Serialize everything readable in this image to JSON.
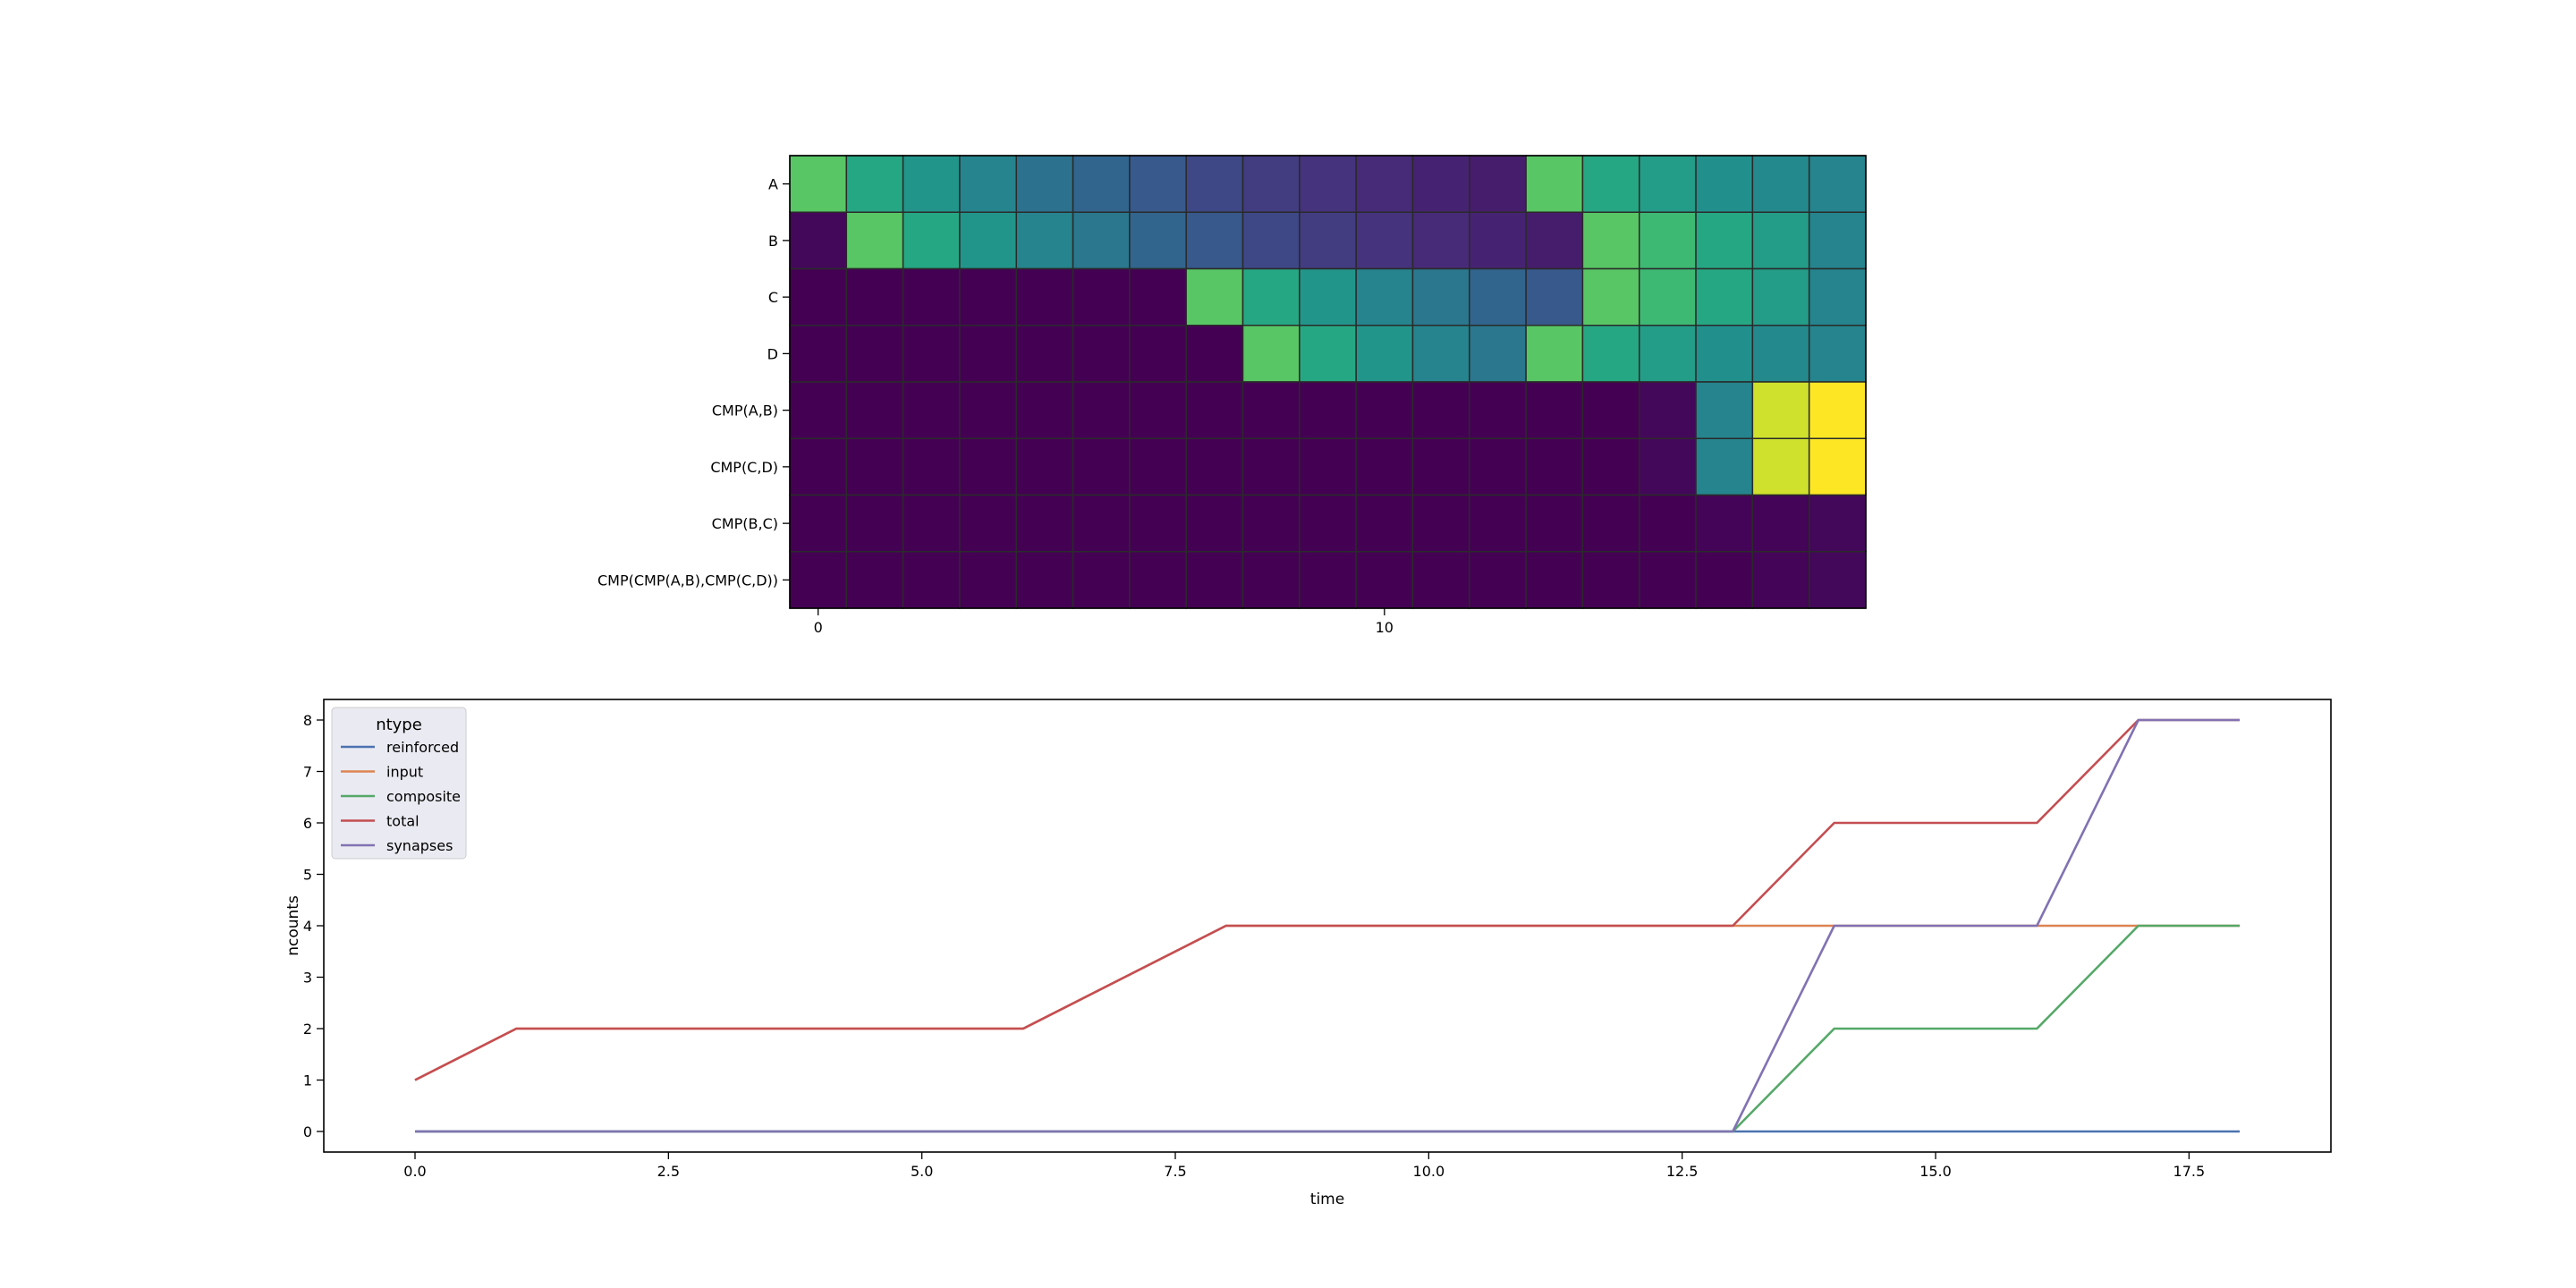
{
  "chart_data": [
    {
      "type": "heatmap",
      "rows": [
        "A",
        "B",
        "C",
        "D",
        "CMP(A,B)",
        "CMP(C,D)",
        "CMP(B,C)",
        "CMP(CMP(A,B),CMP(C,D))"
      ],
      "columns": [
        0,
        1,
        2,
        3,
        4,
        5,
        6,
        7,
        8,
        9,
        10,
        11,
        12,
        13,
        14,
        15,
        16,
        17,
        18
      ],
      "xticks": [
        0,
        10
      ],
      "colormap": "viridis",
      "values": [
        [
          0.74,
          0.6,
          0.52,
          0.45,
          0.38,
          0.33,
          0.28,
          0.22,
          0.18,
          0.15,
          0.12,
          0.1,
          0.08,
          0.74,
          0.6,
          0.55,
          0.5,
          0.47,
          0.45
        ],
        [
          0.02,
          0.74,
          0.6,
          0.52,
          0.45,
          0.4,
          0.33,
          0.28,
          0.22,
          0.18,
          0.15,
          0.12,
          0.1,
          0.08,
          0.74,
          0.68,
          0.6,
          0.55,
          0.45
        ],
        [
          0.0,
          0.0,
          0.0,
          0.0,
          0.0,
          0.0,
          0.0,
          0.74,
          0.6,
          0.52,
          0.45,
          0.4,
          0.33,
          0.28,
          0.74,
          0.68,
          0.6,
          0.55,
          0.45
        ],
        [
          0.0,
          0.0,
          0.0,
          0.0,
          0.0,
          0.0,
          0.0,
          0.0,
          0.74,
          0.6,
          0.52,
          0.45,
          0.4,
          0.74,
          0.6,
          0.55,
          0.5,
          0.47,
          0.45
        ],
        [
          0.0,
          0.0,
          0.0,
          0.0,
          0.0,
          0.0,
          0.0,
          0.0,
          0.0,
          0.0,
          0.0,
          0.0,
          0.0,
          0.0,
          0.0,
          0.02,
          0.45,
          0.93,
          1.0
        ],
        [
          0.0,
          0.0,
          0.0,
          0.0,
          0.0,
          0.0,
          0.0,
          0.0,
          0.0,
          0.0,
          0.0,
          0.0,
          0.0,
          0.0,
          0.0,
          0.02,
          0.45,
          0.93,
          1.0
        ],
        [
          0.0,
          0.0,
          0.0,
          0.0,
          0.0,
          0.0,
          0.0,
          0.0,
          0.0,
          0.0,
          0.0,
          0.0,
          0.0,
          0.0,
          0.0,
          0.0,
          0.01,
          0.01,
          0.02
        ],
        [
          0.0,
          0.0,
          0.0,
          0.0,
          0.0,
          0.0,
          0.0,
          0.0,
          0.0,
          0.0,
          0.0,
          0.0,
          0.0,
          0.0,
          0.0,
          0.0,
          0.0,
          0.01,
          0.02
        ]
      ]
    },
    {
      "type": "line",
      "xlabel": "time",
      "ylabel": "ncounts",
      "xlim": [
        -0.9,
        18.9
      ],
      "ylim": [
        -0.4,
        8.4
      ],
      "xticks": [
        0.0,
        2.5,
        5.0,
        7.5,
        10.0,
        12.5,
        15.0,
        17.5
      ],
      "xtick_labels": [
        "0.0",
        "2.5",
        "5.0",
        "7.5",
        "10.0",
        "12.5",
        "15.0",
        "17.5"
      ],
      "yticks": [
        0,
        1,
        2,
        3,
        4,
        5,
        6,
        7,
        8
      ],
      "yticks_labels": [
        "0",
        "1",
        "2",
        "3",
        "4",
        "5",
        "6",
        "7",
        "8"
      ],
      "legend_title": "ntype",
      "legend_position": "upper-left",
      "x": [
        0,
        1,
        2,
        3,
        4,
        5,
        6,
        7,
        8,
        9,
        10,
        11,
        12,
        13,
        14,
        15,
        16,
        17,
        18
      ],
      "series": [
        {
          "name": "reinforced",
          "color": "#4c72b0",
          "values": [
            0,
            0,
            0,
            0,
            0,
            0,
            0,
            0,
            0,
            0,
            0,
            0,
            0,
            0,
            0,
            0,
            0,
            0,
            0
          ]
        },
        {
          "name": "input",
          "color": "#dd8452",
          "values": [
            1,
            2,
            2,
            2,
            2,
            2,
            2,
            3,
            4,
            4,
            4,
            4,
            4,
            4,
            4,
            4,
            4,
            4,
            4
          ]
        },
        {
          "name": "composite",
          "color": "#55a868",
          "values": [
            0,
            0,
            0,
            0,
            0,
            0,
            0,
            0,
            0,
            0,
            0,
            0,
            0,
            0,
            2,
            2,
            2,
            4,
            4
          ]
        },
        {
          "name": "total",
          "color": "#c44e52",
          "values": [
            1,
            2,
            2,
            2,
            2,
            2,
            2,
            3,
            4,
            4,
            4,
            4,
            4,
            4,
            6,
            6,
            6,
            8,
            8
          ]
        },
        {
          "name": "synapses",
          "color": "#8172b3",
          "values": [
            0,
            0,
            0,
            0,
            0,
            0,
            0,
            0,
            0,
            0,
            0,
            0,
            0,
            0,
            4,
            4,
            4,
            8,
            8
          ]
        }
      ]
    }
  ]
}
